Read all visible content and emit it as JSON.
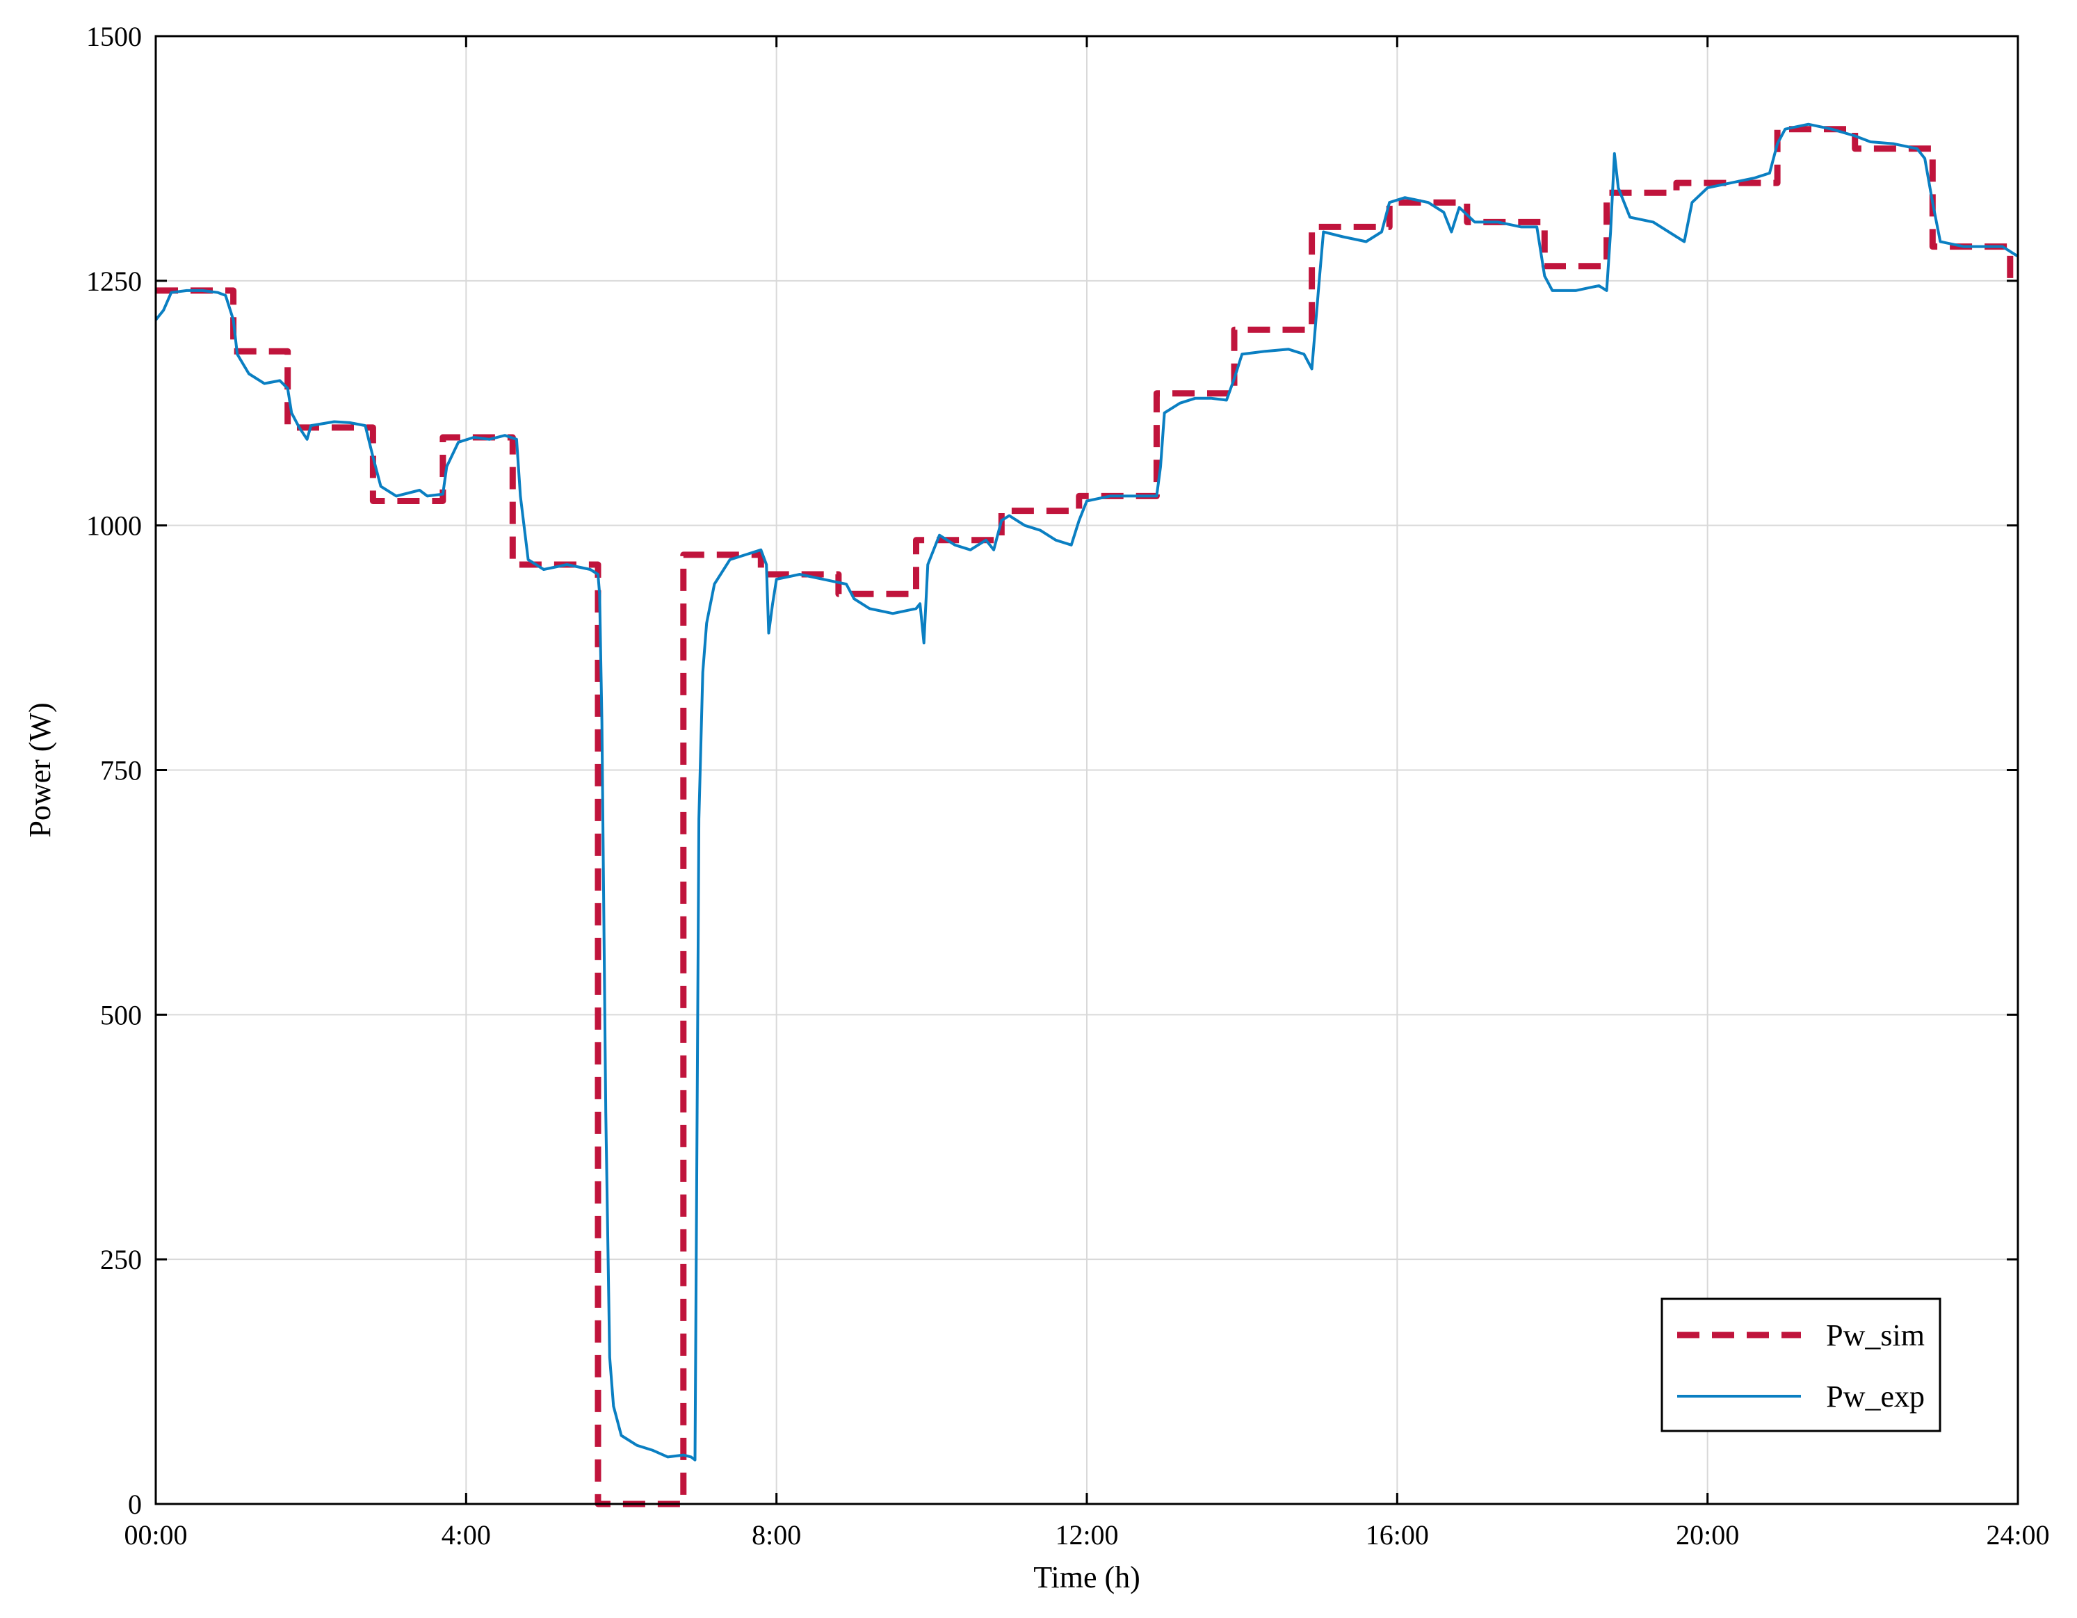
{
  "chart_data": {
    "type": "line",
    "title": "",
    "xlabel": "Time (h)",
    "ylabel": "Power (W)",
    "xlim": [
      0,
      24
    ],
    "ylim": [
      0,
      1500
    ],
    "x_ticks": [
      0,
      4,
      8,
      12,
      16,
      20,
      24
    ],
    "x_tick_labels": [
      "00:00",
      "4:00",
      "8:00",
      "12:00",
      "16:00",
      "20:00",
      "24:00"
    ],
    "y_ticks": [
      0,
      250,
      500,
      750,
      1000,
      1250,
      1500
    ],
    "y_tick_labels": [
      "0",
      "250",
      "500",
      "750",
      "1000",
      "1250",
      "1500"
    ],
    "grid": true,
    "legend_position": "bottom-right",
    "x_unit": "hours",
    "series": [
      {
        "name": "Pw_sim",
        "style": "dashed",
        "color": "#c0143c",
        "points": [
          [
            0.0,
            1240
          ],
          [
            1.0,
            1240
          ],
          [
            1.0,
            1178
          ],
          [
            1.7,
            1178
          ],
          [
            1.7,
            1100
          ],
          [
            2.8,
            1100
          ],
          [
            2.8,
            1025
          ],
          [
            3.7,
            1025
          ],
          [
            3.7,
            1090
          ],
          [
            4.6,
            1090
          ],
          [
            4.6,
            960
          ],
          [
            5.7,
            960
          ],
          [
            5.7,
            0
          ],
          [
            6.8,
            0
          ],
          [
            6.8,
            970
          ],
          [
            7.8,
            970
          ],
          [
            7.8,
            950
          ],
          [
            8.8,
            950
          ],
          [
            8.8,
            930
          ],
          [
            9.8,
            930
          ],
          [
            9.8,
            985
          ],
          [
            10.9,
            985
          ],
          [
            10.9,
            1015
          ],
          [
            11.9,
            1015
          ],
          [
            11.9,
            1030
          ],
          [
            12.9,
            1030
          ],
          [
            12.9,
            1135
          ],
          [
            13.9,
            1135
          ],
          [
            13.9,
            1200
          ],
          [
            14.9,
            1200
          ],
          [
            14.9,
            1305
          ],
          [
            15.9,
            1305
          ],
          [
            15.9,
            1330
          ],
          [
            16.9,
            1330
          ],
          [
            16.9,
            1310
          ],
          [
            17.9,
            1310
          ],
          [
            17.9,
            1265
          ],
          [
            18.7,
            1265
          ],
          [
            18.7,
            1340
          ],
          [
            19.6,
            1340
          ],
          [
            19.6,
            1350
          ],
          [
            20.9,
            1350
          ],
          [
            20.9,
            1405
          ],
          [
            21.9,
            1405
          ],
          [
            21.9,
            1385
          ],
          [
            22.9,
            1385
          ],
          [
            22.9,
            1285
          ],
          [
            23.9,
            1285
          ],
          [
            23.9,
            1250
          ],
          [
            24.0,
            1250
          ]
        ]
      },
      {
        "name": "Pw_exp",
        "style": "solid",
        "color": "#0a7fc2",
        "points": [
          [
            0.0,
            1210
          ],
          [
            0.1,
            1220
          ],
          [
            0.2,
            1238
          ],
          [
            0.4,
            1240
          ],
          [
            0.6,
            1240
          ],
          [
            0.8,
            1238
          ],
          [
            0.9,
            1235
          ],
          [
            1.0,
            1210
          ],
          [
            1.05,
            1175
          ],
          [
            1.2,
            1155
          ],
          [
            1.4,
            1145
          ],
          [
            1.6,
            1148
          ],
          [
            1.7,
            1140
          ],
          [
            1.75,
            1115
          ],
          [
            1.85,
            1100
          ],
          [
            1.95,
            1088
          ],
          [
            2.0,
            1102
          ],
          [
            2.3,
            1106
          ],
          [
            2.5,
            1105
          ],
          [
            2.7,
            1102
          ],
          [
            2.8,
            1070
          ],
          [
            2.9,
            1040
          ],
          [
            3.1,
            1030
          ],
          [
            3.4,
            1036
          ],
          [
            3.5,
            1030
          ],
          [
            3.7,
            1032
          ],
          [
            3.75,
            1060
          ],
          [
            3.9,
            1085
          ],
          [
            4.1,
            1090
          ],
          [
            4.3,
            1088
          ],
          [
            4.5,
            1092
          ],
          [
            4.65,
            1088
          ],
          [
            4.7,
            1030
          ],
          [
            4.8,
            965
          ],
          [
            5.0,
            955
          ],
          [
            5.3,
            960
          ],
          [
            5.6,
            955
          ],
          [
            5.7,
            950
          ],
          [
            5.72,
            930
          ],
          [
            5.75,
            800
          ],
          [
            5.8,
            400
          ],
          [
            5.85,
            150
          ],
          [
            5.9,
            100
          ],
          [
            6.0,
            70
          ],
          [
            6.2,
            60
          ],
          [
            6.4,
            55
          ],
          [
            6.6,
            48
          ],
          [
            6.8,
            50
          ],
          [
            6.9,
            48
          ],
          [
            6.95,
            45
          ],
          [
            6.97,
            300
          ],
          [
            7.0,
            700
          ],
          [
            7.05,
            850
          ],
          [
            7.1,
            900
          ],
          [
            7.2,
            940
          ],
          [
            7.4,
            965
          ],
          [
            7.6,
            970
          ],
          [
            7.8,
            975
          ],
          [
            7.87,
            960
          ],
          [
            7.9,
            890
          ],
          [
            7.95,
            920
          ],
          [
            8.0,
            945
          ],
          [
            8.3,
            950
          ],
          [
            8.6,
            945
          ],
          [
            8.9,
            940
          ],
          [
            9.0,
            925
          ],
          [
            9.2,
            915
          ],
          [
            9.5,
            910
          ],
          [
            9.8,
            915
          ],
          [
            9.85,
            920
          ],
          [
            9.9,
            880
          ],
          [
            9.95,
            960
          ],
          [
            10.1,
            990
          ],
          [
            10.3,
            980
          ],
          [
            10.5,
            975
          ],
          [
            10.7,
            985
          ],
          [
            10.8,
            975
          ],
          [
            10.9,
            1005
          ],
          [
            11.0,
            1010
          ],
          [
            11.2,
            1000
          ],
          [
            11.4,
            995
          ],
          [
            11.6,
            985
          ],
          [
            11.8,
            980
          ],
          [
            11.9,
            1005
          ],
          [
            12.0,
            1025
          ],
          [
            12.3,
            1030
          ],
          [
            12.6,
            1030
          ],
          [
            12.9,
            1030
          ],
          [
            12.95,
            1060
          ],
          [
            13.0,
            1115
          ],
          [
            13.2,
            1125
          ],
          [
            13.4,
            1130
          ],
          [
            13.6,
            1130
          ],
          [
            13.8,
            1128
          ],
          [
            13.9,
            1150
          ],
          [
            14.0,
            1175
          ],
          [
            14.3,
            1178
          ],
          [
            14.6,
            1180
          ],
          [
            14.8,
            1175
          ],
          [
            14.9,
            1160
          ],
          [
            15.0,
            1255
          ],
          [
            15.05,
            1300
          ],
          [
            15.3,
            1295
          ],
          [
            15.6,
            1290
          ],
          [
            15.8,
            1300
          ],
          [
            15.9,
            1330
          ],
          [
            16.1,
            1335
          ],
          [
            16.4,
            1330
          ],
          [
            16.6,
            1320
          ],
          [
            16.7,
            1300
          ],
          [
            16.8,
            1325
          ],
          [
            17.0,
            1310
          ],
          [
            17.3,
            1310
          ],
          [
            17.6,
            1305
          ],
          [
            17.8,
            1305
          ],
          [
            17.9,
            1255
          ],
          [
            18.0,
            1240
          ],
          [
            18.3,
            1240
          ],
          [
            18.6,
            1245
          ],
          [
            18.7,
            1240
          ],
          [
            18.75,
            1300
          ],
          [
            18.8,
            1380
          ],
          [
            18.85,
            1345
          ],
          [
            19.0,
            1315
          ],
          [
            19.3,
            1310
          ],
          [
            19.6,
            1295
          ],
          [
            19.7,
            1290
          ],
          [
            19.8,
            1330
          ],
          [
            20.0,
            1345
          ],
          [
            20.3,
            1350
          ],
          [
            20.6,
            1355
          ],
          [
            20.8,
            1360
          ],
          [
            20.9,
            1390
          ],
          [
            21.0,
            1405
          ],
          [
            21.3,
            1410
          ],
          [
            21.6,
            1405
          ],
          [
            21.9,
            1398
          ],
          [
            22.1,
            1392
          ],
          [
            22.4,
            1390
          ],
          [
            22.7,
            1385
          ],
          [
            22.8,
            1375
          ],
          [
            22.9,
            1330
          ],
          [
            23.0,
            1290
          ],
          [
            23.3,
            1285
          ],
          [
            23.6,
            1285
          ],
          [
            23.8,
            1285
          ],
          [
            24.0,
            1275
          ]
        ]
      }
    ]
  }
}
